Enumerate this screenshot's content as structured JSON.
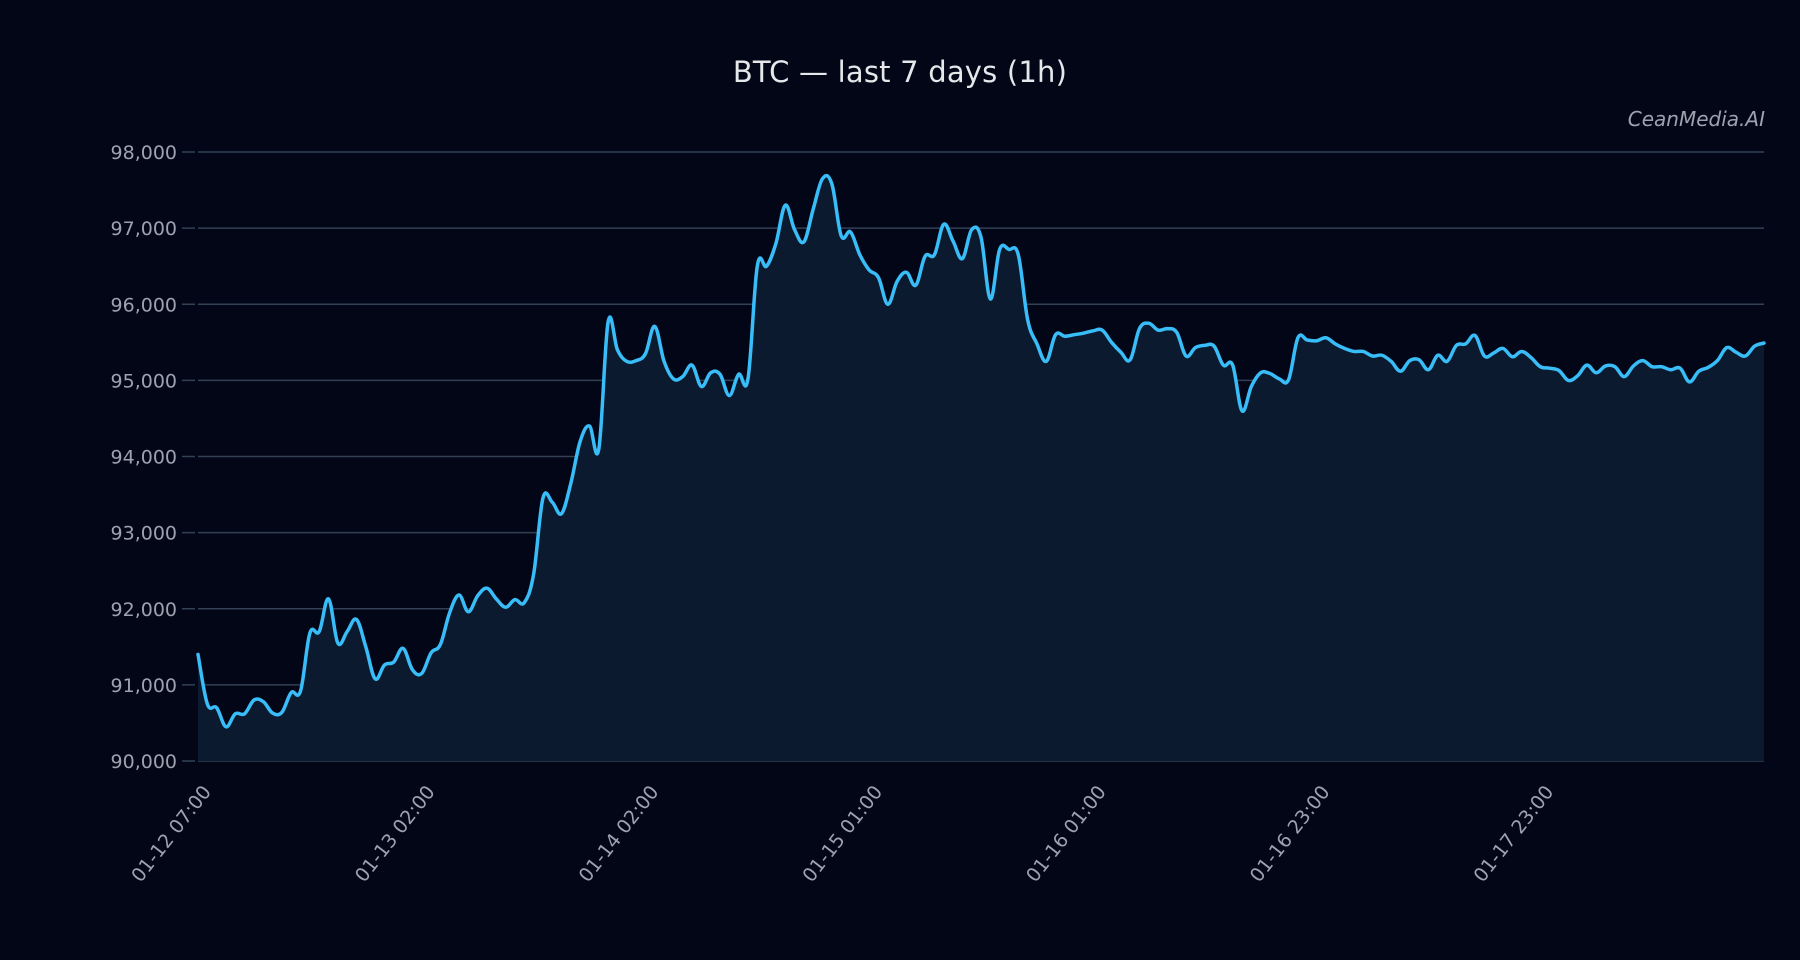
{
  "title": "BTC — last 7 days (1h)",
  "watermark": "CeanMedia.AI",
  "colors": {
    "background": "#020617",
    "line": "#38bdf8",
    "area": "#0b1a2e",
    "grid": "#334155",
    "text": "#9ca3af",
    "title": "#e5e7eb"
  },
  "chart_data": {
    "type": "area",
    "title": "BTC — last 7 days (1h)",
    "xlabel": "",
    "ylabel": "",
    "ylim": [
      90000,
      98000
    ],
    "yticks": [
      90000,
      91000,
      92000,
      93000,
      94000,
      95000,
      96000,
      97000,
      98000
    ],
    "ytick_labels": [
      "90,000",
      "91,000",
      "92,000",
      "93,000",
      "94,000",
      "95,000",
      "96,000",
      "97,000",
      "98,000"
    ],
    "xtick_labels": [
      "01-12 07:00",
      "01-13 02:00",
      "01-14 02:00",
      "01-15 01:00",
      "01-16 01:00",
      "01-16 23:00",
      "01-17 23:00"
    ],
    "xtick_index": [
      0,
      24,
      48,
      72,
      96,
      120,
      144
    ],
    "grid": true,
    "legend": null,
    "series": [
      {
        "name": "BTC",
        "values": [
          91400,
          90750,
          90700,
          90450,
          90620,
          90620,
          90800,
          90780,
          90630,
          90640,
          90900,
          90920,
          91680,
          91700,
          92130,
          91550,
          91700,
          91860,
          91500,
          91080,
          91260,
          91300,
          91480,
          91200,
          91150,
          91420,
          91530,
          91950,
          92180,
          91960,
          92170,
          92270,
          92130,
          92020,
          92120,
          92080,
          92450,
          93450,
          93400,
          93250,
          93650,
          94200,
          94400,
          94100,
          95770,
          95400,
          95250,
          95260,
          95350,
          95710,
          95250,
          95020,
          95050,
          95200,
          94920,
          95100,
          95080,
          94800,
          95080,
          95020,
          96500,
          96500,
          96800,
          97300,
          96980,
          96820,
          97250,
          97650,
          97580,
          96900,
          96950,
          96650,
          96450,
          96350,
          96000,
          96300,
          96420,
          96250,
          96630,
          96650,
          97050,
          96830,
          96600,
          96980,
          96880,
          96070,
          96720,
          96720,
          96650,
          95800,
          95480,
          95250,
          95600,
          95580,
          95600,
          95620,
          95650,
          95660,
          95500,
          95370,
          95270,
          95680,
          95750,
          95660,
          95680,
          95630,
          95320,
          95430,
          95460,
          95450,
          95200,
          95200,
          94600,
          94920,
          95100,
          95090,
          95020,
          95010,
          95560,
          95530,
          95520,
          95560,
          95480,
          95420,
          95380,
          95380,
          95320,
          95330,
          95250,
          95120,
          95260,
          95270,
          95140,
          95330,
          95250,
          95460,
          95480,
          95590,
          95320,
          95360,
          95420,
          95310,
          95380,
          95300,
          95180,
          95160,
          95130,
          95000,
          95060,
          95200,
          95100,
          95190,
          95180,
          95050,
          95190,
          95260,
          95180,
          95180,
          95140,
          95160,
          94980,
          95120,
          95170,
          95260,
          95430,
          95370,
          95320,
          95450,
          95490
        ]
      }
    ]
  }
}
